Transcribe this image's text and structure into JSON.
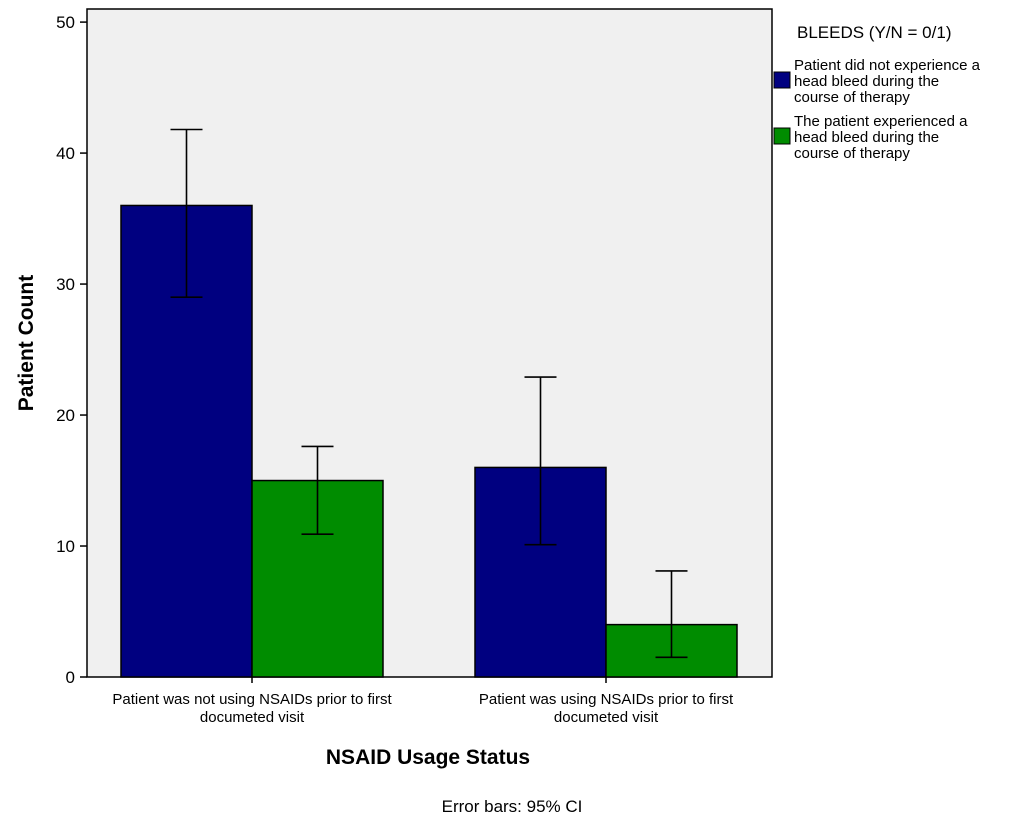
{
  "chart_data": {
    "type": "bar",
    "title": "",
    "xlabel": "NSAID Usage Status",
    "ylabel": "Patient Count",
    "ylim": [
      0,
      51
    ],
    "yticks": [
      0,
      10,
      20,
      30,
      40,
      50
    ],
    "grid": false,
    "legend_position": "right",
    "legend_title": "BLEEDS (Y/N = 0/1)",
    "categories": [
      [
        "Patient was not using NSAIDs prior to first",
        "documeted visit"
      ],
      [
        "Patient was using NSAIDs prior to first",
        "documeted visit"
      ]
    ],
    "series": [
      {
        "name": [
          "Patient did not experience a",
          "head bleed during the",
          "course of therapy"
        ],
        "color": "#000080",
        "values": [
          36,
          16
        ],
        "ci_low": [
          29,
          10.1
        ],
        "ci_high": [
          41.8,
          22.9
        ]
      },
      {
        "name": [
          "The patient experienced a",
          "head bleed during the",
          "course of therapy"
        ],
        "color": "#008c00",
        "values": [
          15,
          4
        ],
        "ci_low": [
          10.9,
          1.5
        ],
        "ci_high": [
          17.6,
          8.1
        ]
      }
    ],
    "footnote": "Error bars: 95% CI"
  }
}
